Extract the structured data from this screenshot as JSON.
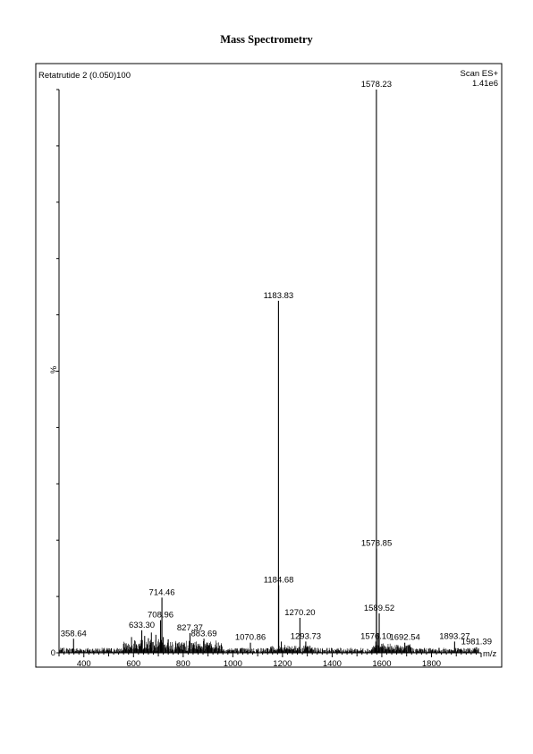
{
  "page_title": "Mass Spectrometry",
  "chart_data": {
    "type": "line",
    "sample_label": "Retatrutide 2 (0.050)",
    "scan_mode": "Scan ES+",
    "base_intensity": "1.41e6",
    "ylabel": "%",
    "xlabel": "m/z",
    "xlim": [
      300,
      2000
    ],
    "ylim": [
      0,
      100
    ],
    "x_ticks": [
      400,
      600,
      800,
      1000,
      1200,
      1400,
      1600,
      1800
    ],
    "y_ticks": [
      0,
      100
    ],
    "labeled_peaks": [
      {
        "label": "358.64",
        "x": 358.64,
        "y": 2.5
      },
      {
        "label": "633.30",
        "x": 633.3,
        "y": 4.0
      },
      {
        "label": "708.96",
        "x": 708.96,
        "y": 5.8
      },
      {
        "label": "714.46",
        "x": 714.46,
        "y": 9.8
      },
      {
        "label": "827.37",
        "x": 827.37,
        "y": 3.5
      },
      {
        "label": "883.69",
        "x": 883.69,
        "y": 2.5
      },
      {
        "label": "1070.86",
        "x": 1070.86,
        "y": 1.8
      },
      {
        "label": "1183.83",
        "x": 1183.83,
        "y": 62.5
      },
      {
        "label": "1184.68",
        "x": 1184.68,
        "y": 12.0
      },
      {
        "label": "1270.20",
        "x": 1270.2,
        "y": 6.2
      },
      {
        "label": "1293.73",
        "x": 1293.73,
        "y": 2.0
      },
      {
        "label": "1576.10",
        "x": 1576.1,
        "y": 2.0
      },
      {
        "label": "1578.23",
        "x": 1578.23,
        "y": 100
      },
      {
        "label": "1578.85",
        "x": 1578.85,
        "y": 18.5
      },
      {
        "label": "1589.52",
        "x": 1589.52,
        "y": 7.0
      },
      {
        "label": "1692.54",
        "x": 1692.54,
        "y": 1.8
      },
      {
        "label": "1893.27",
        "x": 1893.27,
        "y": 2.0
      },
      {
        "label": "1981.39",
        "x": 1981.39,
        "y": 1.0
      }
    ],
    "minor_peaks": [
      {
        "x": 560,
        "y": 1.6
      },
      {
        "x": 592,
        "y": 2.8
      },
      {
        "x": 605,
        "y": 2.2
      },
      {
        "x": 645,
        "y": 3.0
      },
      {
        "x": 660,
        "y": 2.6
      },
      {
        "x": 672,
        "y": 3.6
      },
      {
        "x": 690,
        "y": 3.2
      },
      {
        "x": 720,
        "y": 2.8
      },
      {
        "x": 740,
        "y": 2.4
      },
      {
        "x": 770,
        "y": 1.8
      },
      {
        "x": 860,
        "y": 1.6
      },
      {
        "x": 905,
        "y": 1.4
      },
      {
        "x": 1195,
        "y": 2.0
      },
      {
        "x": 1585,
        "y": 3.5
      },
      {
        "x": 1600,
        "y": 1.6
      },
      {
        "x": 1700,
        "y": 1.2
      }
    ]
  }
}
